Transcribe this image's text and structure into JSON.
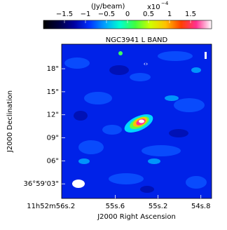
{
  "chart_data": {
    "type": "image",
    "title": "NGC3941 L BAND",
    "xlabel": "J2000 Right Ascension",
    "ylabel": "J2000 Declination",
    "xlim": [
      56.1,
      54.7
    ],
    "xticks": [
      {
        "value": 56.2,
        "label": "11h52m56s.2"
      },
      {
        "value": 55.6,
        "label": "55s.6"
      },
      {
        "value": 55.2,
        "label": "55s.2"
      },
      {
        "value": 54.8,
        "label": "54s.8"
      }
    ],
    "ylim": [
      1.1,
      21.2
    ],
    "yticks": [
      {
        "value": 3,
        "label": "36°59'03\""
      },
      {
        "value": 6,
        "label": "06\""
      },
      {
        "value": 9,
        "label": "09\""
      },
      {
        "value": 12,
        "label": "12\""
      },
      {
        "value": 15,
        "label": "15\""
      },
      {
        "value": 18,
        "label": "18\""
      }
    ],
    "colorbar": {
      "label": "(Jy/beam)",
      "scale": "x10",
      "exponent": "−4",
      "clim": [
        -2,
        2
      ],
      "ticks": [
        {
          "value": -1.5,
          "label": "−1.5"
        },
        {
          "value": -1,
          "label": "−1"
        },
        {
          "value": -0.5,
          "label": "−0.5"
        },
        0,
        {
          "value": 0.5,
          "label": "0.5"
        },
        1,
        {
          "value": 1.5,
          "label": "1.5"
        }
      ],
      "colors": [
        "#000000",
        "#000040",
        "#0000a0",
        "#0030ff",
        "#00a0ff",
        "#00ffd0",
        "#40ff40",
        "#d0ff00",
        "#ffc000",
        "#ff4000",
        "#ff3090",
        "#ffffff"
      ]
    }
  }
}
